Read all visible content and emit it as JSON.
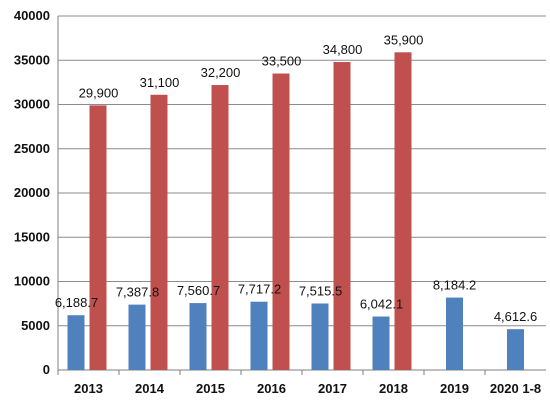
{
  "chart_data": {
    "type": "bar",
    "categories": [
      "2013",
      "2014",
      "2015",
      "2016",
      "2017",
      "2018",
      "2019",
      "2020 1-8"
    ],
    "series": [
      {
        "values": [
          6188.7,
          7387.8,
          7560.7,
          7717.2,
          7515.5,
          6042.1,
          8184.2,
          4612.6
        ],
        "labels": [
          "6,188.7",
          "7,387.8",
          "7,560.7",
          "7,717.2",
          "7,515.5",
          "6,042.1",
          "8,184.2",
          "4,612.6"
        ],
        "color": "#4F81BD"
      },
      {
        "values": [
          29900,
          31100,
          32200,
          33500,
          34800,
          35900,
          null,
          null
        ],
        "labels": [
          "29,900",
          "31,100",
          "32,200",
          "33,500",
          "34,800",
          "35,900",
          "",
          ""
        ],
        "color": "#C0504D"
      }
    ],
    "ylim": [
      0,
      40000
    ],
    "yticks": [
      "0",
      "5000",
      "10000",
      "15000",
      "20000",
      "25000",
      "30000",
      "35000",
      "40000"
    ],
    "grid": "horizontal",
    "legend": "none"
  }
}
